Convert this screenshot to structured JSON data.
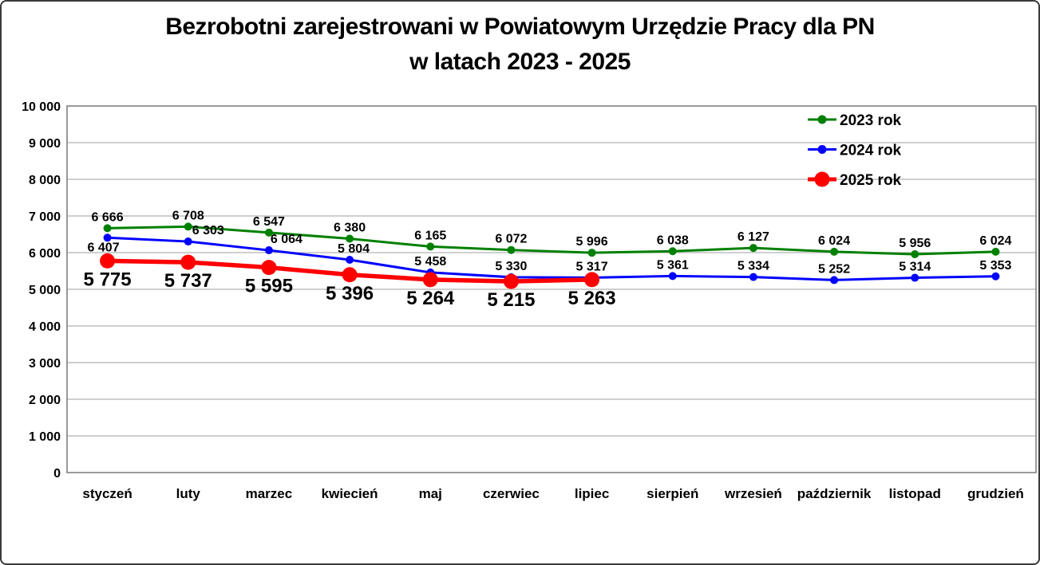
{
  "title": {
    "line1": "Bezrobotni zarejestrowani w Powiatowym Urzędzie Pracy dla PN",
    "line2": "w latach 2023 - 2025"
  },
  "chart_data": {
    "type": "line",
    "categories": [
      "styczeń",
      "luty",
      "marzec",
      "kwiecień",
      "maj",
      "czerwiec",
      "lipiec",
      "sierpień",
      "wrzesień",
      "październik",
      "listopad",
      "grudzień"
    ],
    "series": [
      {
        "name": "2023 rok",
        "color": "#008000",
        "marker": "circle-small",
        "label_position": "above",
        "values": [
          6666,
          6708,
          6547,
          6380,
          6165,
          6072,
          5996,
          6038,
          6127,
          6024,
          5956,
          6024
        ]
      },
      {
        "name": "2024 rok",
        "color": "#0000ff",
        "marker": "circle-small",
        "label_position": "above",
        "label_overrides": [
          {
            "index": 0,
            "position": "below",
            "dx": -5
          },
          {
            "index": 1,
            "dx": 25
          },
          {
            "index": 2,
            "dx": 22
          },
          {
            "index": 3,
            "dx": 5
          }
        ],
        "values": [
          6407,
          6303,
          6064,
          5804,
          5458,
          5330,
          5317,
          5361,
          5334,
          5252,
          5314,
          5353
        ]
      },
      {
        "name": "2025 rok",
        "color": "#ff0000",
        "marker": "circle-large",
        "label_position": "below",
        "values": [
          5775,
          5737,
          5595,
          5396,
          5264,
          5215,
          5263
        ]
      }
    ],
    "xlabel": "",
    "ylabel": "",
    "ylim": [
      0,
      10000
    ],
    "ytick_step": 1000,
    "ytick_labels": [
      "0",
      "1 000",
      "2 000",
      "3 000",
      "4 000",
      "5 000",
      "6 000",
      "7 000",
      "8 000",
      "9 000",
      "10 000"
    ],
    "grid": true,
    "legend_position": "top-right",
    "legend": [
      "2023 rok",
      "2024 rok",
      "2025 rok"
    ],
    "data_labels": true,
    "number_format": "space thousands separator"
  },
  "colors": {
    "series_2023": "#008000",
    "series_2024": "#0000ff",
    "series_2025": "#ff0000",
    "gridline": "#bfbfbf",
    "plot_border": "#808080",
    "frame_border": "#3a3a3a",
    "background": "#ffffff",
    "text": "#000000"
  }
}
